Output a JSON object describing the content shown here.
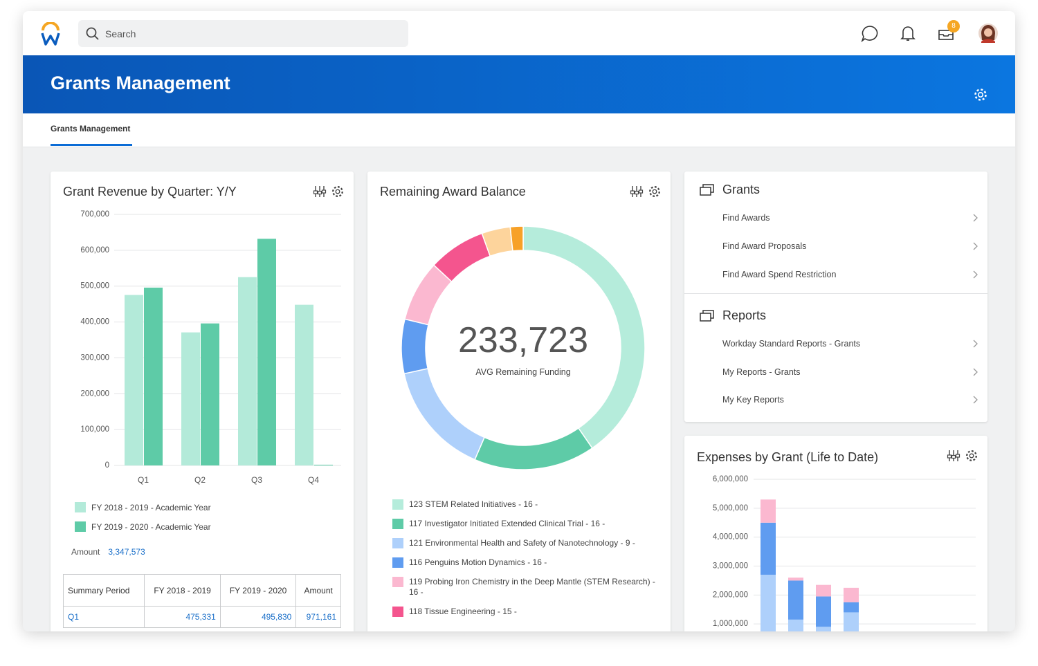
{
  "header": {
    "search_placeholder": "Search",
    "notification_count": "8"
  },
  "banner": {
    "title": "Grants Management"
  },
  "tabs": [
    "Grants Management"
  ],
  "chart_data": [
    {
      "type": "bar",
      "title": "Grant Revenue by Quarter: Y/Y",
      "categories": [
        "Q1",
        "Q2",
        "Q3",
        "Q4"
      ],
      "series": [
        {
          "name": "FY 2018 - 2019 - Academic Year",
          "color": "#b3ead9",
          "values": [
            475331,
            371000,
            525000,
            448000
          ]
        },
        {
          "name": "FY 2019 - 2020 - Academic Year",
          "color": "#5ecba7",
          "values": [
            495830,
            396000,
            632000,
            2000
          ]
        }
      ],
      "ylim": [
        0,
        700000
      ],
      "yticks": [
        0,
        {
          "value": 100000,
          "label": "100,000"
        },
        {
          "value": 200000,
          "label": "200,000"
        },
        {
          "value": 300000,
          "label": "300,000"
        },
        {
          "value": 400000,
          "label": "400,000"
        },
        {
          "value": 500000,
          "label": "500,000"
        },
        {
          "value": 600000,
          "label": "600,000"
        },
        {
          "value": 700000,
          "label": "700,000"
        }
      ],
      "grid": true
    },
    {
      "type": "pie",
      "title": "Remaining Award Balance",
      "center_value": "233,723",
      "center_label": "AVG Remaining Funding",
      "categories": [
        "123 STEM Related Initiatives - 16 -",
        "117 Investigator Initiated Extended Clinical Trial - 16 -",
        "121 Environmental Health and Safety of Nanotechnology - 9 -",
        "116 Penguins Motion Dynamics - 16 -",
        "119 Probing Iron Chemistry in the Deep Mantle (STEM Research) - 16 -",
        "118 Tissue Engineering - 15 -",
        null,
        null
      ],
      "values": [
        40.4,
        16.1,
        15.1,
        7.2,
        8.1,
        7.6,
        3.8,
        1.7
      ],
      "colors": [
        "#b5ecdb",
        "#5ecba7",
        "#aed0fb",
        "#5f9cf0",
        "#fbb8d0",
        "#f4558e",
        "#fdd49c",
        "#f7a128"
      ]
    },
    {
      "type": "stacked-bar",
      "title": "Expenses by Grant (Life to Date)",
      "categories": [
        null,
        null,
        null,
        null
      ],
      "series": [
        {
          "color": "#aed0fb",
          "values": [
            2700000,
            1150000,
            900000,
            1400000
          ]
        },
        {
          "color": "#5f9cf0",
          "values": [
            1800000,
            1350000,
            1050000,
            350000
          ]
        },
        {
          "color": "#fbb8d0",
          "values": [
            800000,
            100000,
            400000,
            500000
          ]
        }
      ],
      "ylim": [
        0,
        6000000
      ],
      "yticks": [
        {
          "value": 1000000,
          "label": "1,000,000"
        },
        {
          "value": 2000000,
          "label": "2,000,000"
        },
        {
          "value": 3000000,
          "label": "3,000,000"
        },
        {
          "value": 4000000,
          "label": "4,000,000"
        },
        {
          "value": 5000000,
          "label": "5,000,000"
        },
        {
          "value": 6000000,
          "label": "6,000,000"
        }
      ],
      "grid": true
    }
  ],
  "revenue_summary": {
    "amount_label": "Amount",
    "amount": "3,347,573",
    "table": {
      "header": [
        "Summary Period",
        "FY 2018 - 2019",
        "FY 2019 - 2020",
        "Amount"
      ],
      "rows": [
        [
          "Q1",
          "475,331",
          "495,830",
          "971,161"
        ]
      ]
    }
  },
  "worklets": [
    {
      "title": "Grants",
      "links": [
        "Find Awards",
        "Find Award Proposals",
        "Find Award Spend Restriction"
      ]
    },
    {
      "title": "Reports",
      "links": [
        "Workday Standard Reports - Grants",
        "My Reports - Grants",
        "My Key Reports"
      ]
    }
  ]
}
